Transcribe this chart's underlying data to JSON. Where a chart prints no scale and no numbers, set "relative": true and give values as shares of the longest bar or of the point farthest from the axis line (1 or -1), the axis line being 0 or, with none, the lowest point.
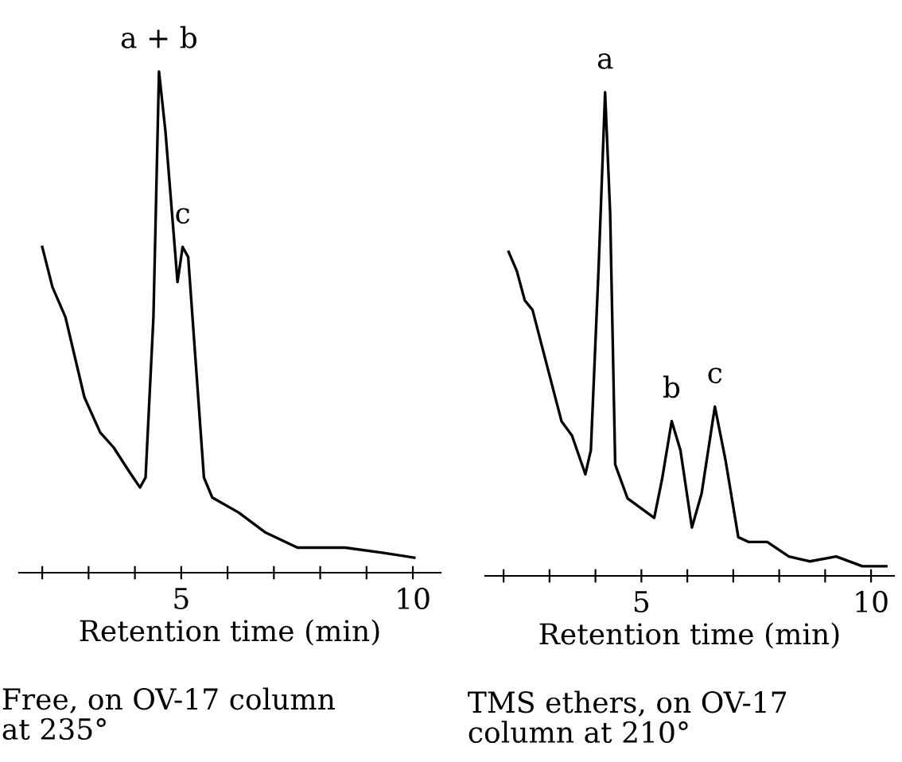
{
  "chart_data": [
    {
      "type": "line",
      "relative": true,
      "xlabel": "Retention time (min)",
      "xlim": [
        1.5,
        10.6
      ],
      "xticks": [
        {
          "value": 2,
          "label": null
        },
        {
          "value": 3,
          "label": null
        },
        {
          "value": 4,
          "label": null
        },
        5,
        {
          "value": 6,
          "label": null
        },
        {
          "value": 7,
          "label": null
        },
        {
          "value": 8,
          "label": null
        },
        {
          "value": 9,
          "label": null
        },
        10
      ],
      "tick_labels": "x",
      "grid": false,
      "legend": false,
      "marker": "none",
      "line_style": "solid",
      "series": [
        {
          "color": "#000000",
          "x": [
            2.0,
            2.22,
            2.5,
            2.91,
            3.25,
            3.54,
            3.89,
            4.11,
            4.23,
            4.4,
            4.52,
            4.66,
            4.92,
            5.03,
            5.15,
            5.49,
            5.67,
            6.24,
            6.82,
            7.51,
            7.97,
            8.54,
            9.34,
            10.03
          ],
          "values": [
            0.65,
            0.57,
            0.51,
            0.35,
            0.28,
            0.25,
            0.2,
            0.17,
            0.19,
            0.51,
            1.0,
            0.88,
            0.58,
            0.65,
            0.63,
            0.19,
            0.15,
            0.12,
            0.08,
            0.05,
            0.05,
            0.05,
            0.04,
            0.03
          ]
        }
      ],
      "annotations": [
        {
          "text": "a + b",
          "x": 4.52,
          "y": 1.0
        },
        {
          "text": "c",
          "x": 5.03,
          "y": 0.65
        },
        "Free, on OV-17 column\nat 235°"
      ]
    },
    {
      "type": "line",
      "relative": true,
      "xlabel": "Retention time (min)",
      "xlim": [
        1.6,
        10.5
      ],
      "xticks": [
        {
          "value": 2,
          "label": null
        },
        {
          "value": 3,
          "label": null
        },
        {
          "value": 4,
          "label": null
        },
        5,
        {
          "value": 6,
          "label": null
        },
        {
          "value": 7,
          "label": null
        },
        {
          "value": 8,
          "label": null
        },
        {
          "value": 9,
          "label": null
        },
        10
      ],
      "tick_labels": "x",
      "grid": false,
      "legend": false,
      "marker": "none",
      "line_style": "solid",
      "series": [
        {
          "color": "#000000",
          "x": [
            2.11,
            2.29,
            2.46,
            2.63,
            3.26,
            3.49,
            3.78,
            3.9,
            4.07,
            4.21,
            4.32,
            4.43,
            4.7,
            5.28,
            5.45,
            5.66,
            5.85,
            6.1,
            6.31,
            6.6,
            6.83,
            7.11,
            7.34,
            7.74,
            8.21,
            8.67,
            9.24,
            9.81,
            10.33
          ],
          "values": [
            0.67,
            0.63,
            0.57,
            0.55,
            0.32,
            0.29,
            0.21,
            0.26,
            0.64,
            1.0,
            0.75,
            0.23,
            0.16,
            0.12,
            0.2,
            0.32,
            0.26,
            0.1,
            0.17,
            0.35,
            0.24,
            0.08,
            0.07,
            0.07,
            0.04,
            0.03,
            0.04,
            0.02,
            0.02
          ]
        }
      ],
      "annotations": [
        {
          "text": "a",
          "x": 4.21,
          "y": 1.0
        },
        {
          "text": "b",
          "x": 5.66,
          "y": 0.32
        },
        {
          "text": "c",
          "x": 6.6,
          "y": 0.35
        },
        "TMS ethers, on OV-17\ncolumn at 210°"
      ]
    }
  ]
}
